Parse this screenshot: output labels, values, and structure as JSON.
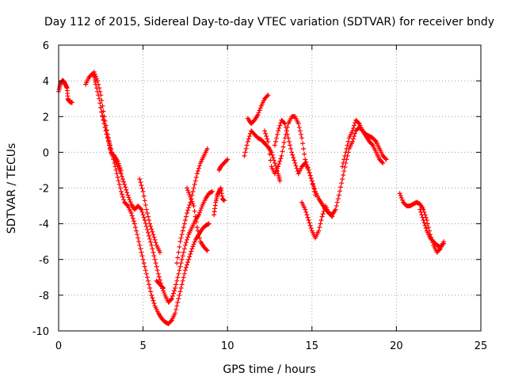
{
  "chart_data": {
    "type": "scatter",
    "title": "Day 112 of 2015, Sidereal Day-to-day VTEC variation (SDTVAR) for receiver bndy",
    "xlabel": "GPS time / hours",
    "ylabel": "SDTVAR / TECUs",
    "xlim": [
      0,
      25
    ],
    "ylim": [
      -10,
      6
    ],
    "xticks": [
      0,
      5,
      10,
      15,
      20,
      25
    ],
    "yticks": [
      -10,
      -8,
      -6,
      -4,
      -2,
      0,
      2,
      4,
      6
    ],
    "grid": true,
    "marker": "plus",
    "marker_color": "#ff0000",
    "segments": [
      [
        [
          0.0,
          3.4
        ],
        [
          0.1,
          3.8
        ],
        [
          0.2,
          4.0
        ],
        [
          0.3,
          4.0
        ],
        [
          0.4,
          3.8
        ],
        [
          0.5,
          3.6
        ],
        [
          0.55,
          3.0
        ],
        [
          0.6,
          2.9
        ],
        [
          0.7,
          2.8
        ],
        [
          0.8,
          2.8
        ]
      ],
      [
        [
          1.6,
          3.8
        ],
        [
          1.8,
          4.2
        ],
        [
          2.0,
          4.4
        ],
        [
          2.1,
          4.3
        ],
        [
          2.2,
          3.8
        ],
        [
          2.4,
          3.0
        ],
        [
          2.6,
          2.0
        ],
        [
          2.8,
          1.2
        ],
        [
          3.0,
          0.5
        ],
        [
          3.1,
          0.0
        ],
        [
          3.3,
          -0.4
        ],
        [
          3.5,
          -0.8
        ],
        [
          3.7,
          -1.2
        ],
        [
          3.9,
          -1.8
        ],
        [
          4.1,
          -2.4
        ],
        [
          4.3,
          -2.9
        ],
        [
          4.5,
          -3.2
        ],
        [
          4.7,
          -3.0
        ],
        [
          4.9,
          -3.2
        ],
        [
          5.1,
          -3.8
        ],
        [
          5.3,
          -4.5
        ],
        [
          5.5,
          -5.2
        ],
        [
          5.7,
          -6.0
        ],
        [
          5.9,
          -6.8
        ],
        [
          6.1,
          -7.5
        ],
        [
          6.3,
          -8.0
        ],
        [
          6.5,
          -8.4
        ],
        [
          6.7,
          -8.2
        ],
        [
          6.9,
          -7.6
        ],
        [
          7.1,
          -6.8
        ],
        [
          7.3,
          -6.0
        ],
        [
          7.5,
          -5.2
        ],
        [
          7.7,
          -4.6
        ],
        [
          7.9,
          -4.2
        ],
        [
          8.1,
          -3.8
        ],
        [
          8.3,
          -3.5
        ],
        [
          8.5,
          -3.0
        ],
        [
          8.7,
          -2.6
        ],
        [
          8.9,
          -2.3
        ],
        [
          9.1,
          -2.2
        ]
      ],
      [
        [
          2.1,
          4.5
        ],
        [
          2.3,
          4.0
        ],
        [
          2.5,
          3.2
        ],
        [
          2.7,
          2.0
        ],
        [
          2.9,
          1.0
        ],
        [
          3.1,
          0.2
        ],
        [
          3.3,
          -0.6
        ],
        [
          3.5,
          -1.4
        ],
        [
          3.7,
          -2.2
        ],
        [
          3.9,
          -2.8
        ],
        [
          4.1,
          -3.0
        ],
        [
          4.3,
          -3.4
        ],
        [
          4.5,
          -4.0
        ],
        [
          4.7,
          -4.8
        ],
        [
          4.9,
          -5.6
        ],
        [
          5.1,
          -6.4
        ],
        [
          5.3,
          -7.2
        ],
        [
          5.5,
          -8.0
        ],
        [
          5.7,
          -8.6
        ],
        [
          5.9,
          -9.0
        ],
        [
          6.1,
          -9.3
        ],
        [
          6.3,
          -9.5
        ],
        [
          6.5,
          -9.6
        ],
        [
          6.7,
          -9.4
        ],
        [
          6.9,
          -9.0
        ],
        [
          7.1,
          -8.2
        ],
        [
          7.3,
          -7.4
        ],
        [
          7.5,
          -6.6
        ],
        [
          7.7,
          -6.0
        ],
        [
          7.9,
          -5.4
        ],
        [
          8.1,
          -4.9
        ],
        [
          8.3,
          -4.6
        ],
        [
          8.5,
          -4.3
        ],
        [
          8.7,
          -4.1
        ],
        [
          8.9,
          -4.0
        ]
      ],
      [
        [
          2.5,
          2.5
        ],
        [
          2.7,
          1.6
        ],
        [
          2.9,
          0.8
        ],
        [
          3.1,
          0.0
        ],
        [
          3.3,
          -0.2
        ],
        [
          3.5,
          -0.5
        ],
        [
          3.7,
          -1.0
        ]
      ],
      [
        [
          4.8,
          -1.5
        ],
        [
          5.0,
          -2.2
        ],
        [
          5.2,
          -3.2
        ],
        [
          5.4,
          -4.0
        ],
        [
          5.6,
          -4.6
        ],
        [
          5.8,
          -5.2
        ],
        [
          6.0,
          -5.6
        ]
      ],
      [
        [
          5.8,
          -7.2
        ],
        [
          6.0,
          -7.4
        ],
        [
          6.2,
          -7.6
        ]
      ],
      [
        [
          7.0,
          -6.2
        ],
        [
          7.2,
          -5.0
        ],
        [
          7.4,
          -4.2
        ],
        [
          7.6,
          -3.4
        ],
        [
          7.8,
          -2.8
        ],
        [
          8.0,
          -2.0
        ],
        [
          8.2,
          -1.2
        ],
        [
          8.4,
          -0.6
        ],
        [
          8.6,
          -0.2
        ],
        [
          8.8,
          0.2
        ]
      ],
      [
        [
          7.6,
          -2.0
        ],
        [
          7.8,
          -2.5
        ],
        [
          8.0,
          -3.0
        ],
        [
          8.2,
          -4.2
        ],
        [
          8.4,
          -5.0
        ],
        [
          8.6,
          -5.3
        ],
        [
          8.8,
          -5.5
        ]
      ],
      [
        [
          9.2,
          -3.5
        ],
        [
          9.3,
          -2.8
        ],
        [
          9.4,
          -2.4
        ],
        [
          9.5,
          -2.2
        ],
        [
          9.6,
          -2.0
        ],
        [
          9.7,
          -2.6
        ],
        [
          9.8,
          -2.7
        ]
      ],
      [
        [
          9.5,
          -1.0
        ],
        [
          9.6,
          -0.8
        ],
        [
          9.8,
          -0.6
        ],
        [
          10.0,
          -0.4
        ]
      ],
      [
        [
          11.0,
          -0.2
        ],
        [
          11.2,
          0.6
        ],
        [
          11.4,
          1.2
        ],
        [
          11.6,
          1.0
        ],
        [
          11.8,
          0.8
        ],
        [
          12.0,
          0.7
        ],
        [
          12.2,
          0.5
        ],
        [
          12.4,
          0.3
        ],
        [
          12.6,
          0.0
        ],
        [
          12.8,
          -0.6
        ],
        [
          13.0,
          -1.2
        ],
        [
          13.1,
          -1.6
        ]
      ],
      [
        [
          11.2,
          1.9
        ],
        [
          11.4,
          1.6
        ],
        [
          11.6,
          1.8
        ],
        [
          11.8,
          2.1
        ],
        [
          12.0,
          2.6
        ],
        [
          12.2,
          3.0
        ],
        [
          12.4,
          3.2
        ]
      ],
      [
        [
          12.2,
          1.2
        ],
        [
          12.4,
          0.6
        ],
        [
          12.6,
          -0.8
        ],
        [
          12.8,
          -1.2
        ],
        [
          13.0,
          -0.8
        ],
        [
          13.2,
          -0.2
        ],
        [
          13.4,
          0.8
        ],
        [
          13.6,
          1.6
        ],
        [
          13.8,
          2.0
        ],
        [
          14.0,
          2.0
        ],
        [
          14.2,
          1.6
        ],
        [
          14.4,
          0.8
        ],
        [
          14.6,
          -0.4
        ],
        [
          14.8,
          -1.0
        ],
        [
          15.0,
          -1.6
        ],
        [
          15.2,
          -2.2
        ],
        [
          15.4,
          -2.6
        ],
        [
          15.6,
          -2.9
        ],
        [
          15.8,
          -3.2
        ],
        [
          16.0,
          -3.4
        ],
        [
          16.2,
          -3.5
        ],
        [
          16.4,
          -3.2
        ],
        [
          16.6,
          -2.4
        ],
        [
          16.8,
          -1.5
        ],
        [
          17.0,
          -0.6
        ],
        [
          17.2,
          0.2
        ],
        [
          17.4,
          0.6
        ],
        [
          17.6,
          1.2
        ],
        [
          17.8,
          1.4
        ],
        [
          18.0,
          1.2
        ],
        [
          18.2,
          1.0
        ],
        [
          18.4,
          0.9
        ],
        [
          18.6,
          0.8
        ],
        [
          18.8,
          0.6
        ],
        [
          19.0,
          0.2
        ],
        [
          19.2,
          -0.2
        ],
        [
          19.4,
          -0.4
        ]
      ],
      [
        [
          12.8,
          0.4
        ],
        [
          13.0,
          1.2
        ],
        [
          13.2,
          1.8
        ],
        [
          13.4,
          1.6
        ],
        [
          13.6,
          0.8
        ],
        [
          13.8,
          0.0
        ],
        [
          14.0,
          -0.6
        ],
        [
          14.2,
          -1.2
        ],
        [
          14.4,
          -0.8
        ],
        [
          14.6,
          -0.6
        ],
        [
          14.8,
          -1.0
        ],
        [
          15.0,
          -1.6
        ],
        [
          15.2,
          -2.4
        ]
      ],
      [
        [
          14.4,
          -2.8
        ],
        [
          14.6,
          -3.2
        ],
        [
          14.8,
          -3.8
        ],
        [
          15.0,
          -4.4
        ],
        [
          15.2,
          -4.8
        ],
        [
          15.4,
          -4.4
        ],
        [
          15.6,
          -3.6
        ],
        [
          15.8,
          -3.0
        ],
        [
          16.0,
          -3.4
        ],
        [
          16.2,
          -3.6
        ]
      ],
      [
        [
          16.8,
          -0.8
        ],
        [
          17.0,
          0.0
        ],
        [
          17.2,
          0.8
        ],
        [
          17.4,
          1.2
        ],
        [
          17.6,
          1.8
        ],
        [
          17.8,
          1.6
        ],
        [
          18.0,
          1.2
        ],
        [
          18.2,
          0.9
        ],
        [
          18.4,
          0.6
        ],
        [
          18.6,
          0.4
        ],
        [
          18.8,
          0.0
        ],
        [
          19.0,
          -0.4
        ],
        [
          19.2,
          -0.6
        ]
      ],
      [
        [
          20.2,
          -2.3
        ],
        [
          20.4,
          -2.8
        ],
        [
          20.6,
          -3.0
        ],
        [
          20.8,
          -3.0
        ],
        [
          21.0,
          -2.9
        ],
        [
          21.2,
          -2.8
        ],
        [
          21.4,
          -2.9
        ],
        [
          21.6,
          -3.2
        ],
        [
          21.8,
          -3.8
        ],
        [
          22.0,
          -4.6
        ],
        [
          22.2,
          -5.2
        ],
        [
          22.4,
          -5.6
        ],
        [
          22.6,
          -5.4
        ],
        [
          22.8,
          -5.0
        ]
      ],
      [
        [
          21.4,
          -3.2
        ],
        [
          21.6,
          -3.8
        ],
        [
          21.8,
          -4.4
        ],
        [
          22.0,
          -4.8
        ],
        [
          22.2,
          -5.0
        ],
        [
          22.4,
          -5.2
        ],
        [
          22.6,
          -5.3
        ],
        [
          22.8,
          -5.1
        ]
      ]
    ]
  }
}
